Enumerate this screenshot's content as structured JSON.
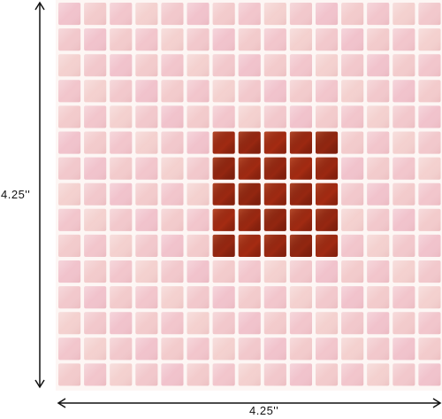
{
  "product": {
    "height_label": "4.25''",
    "width_label": "4.25''"
  },
  "tile_sheet": {
    "grid_columns": 15,
    "grid_rows": 15,
    "base_tile_color": "#f1c7c7",
    "grout_color": "#fdf6f4",
    "accent_tile_color": "#a62a10",
    "accent_block_columns": [
      6,
      10
    ],
    "accent_block_rows": [
      5,
      9
    ]
  }
}
